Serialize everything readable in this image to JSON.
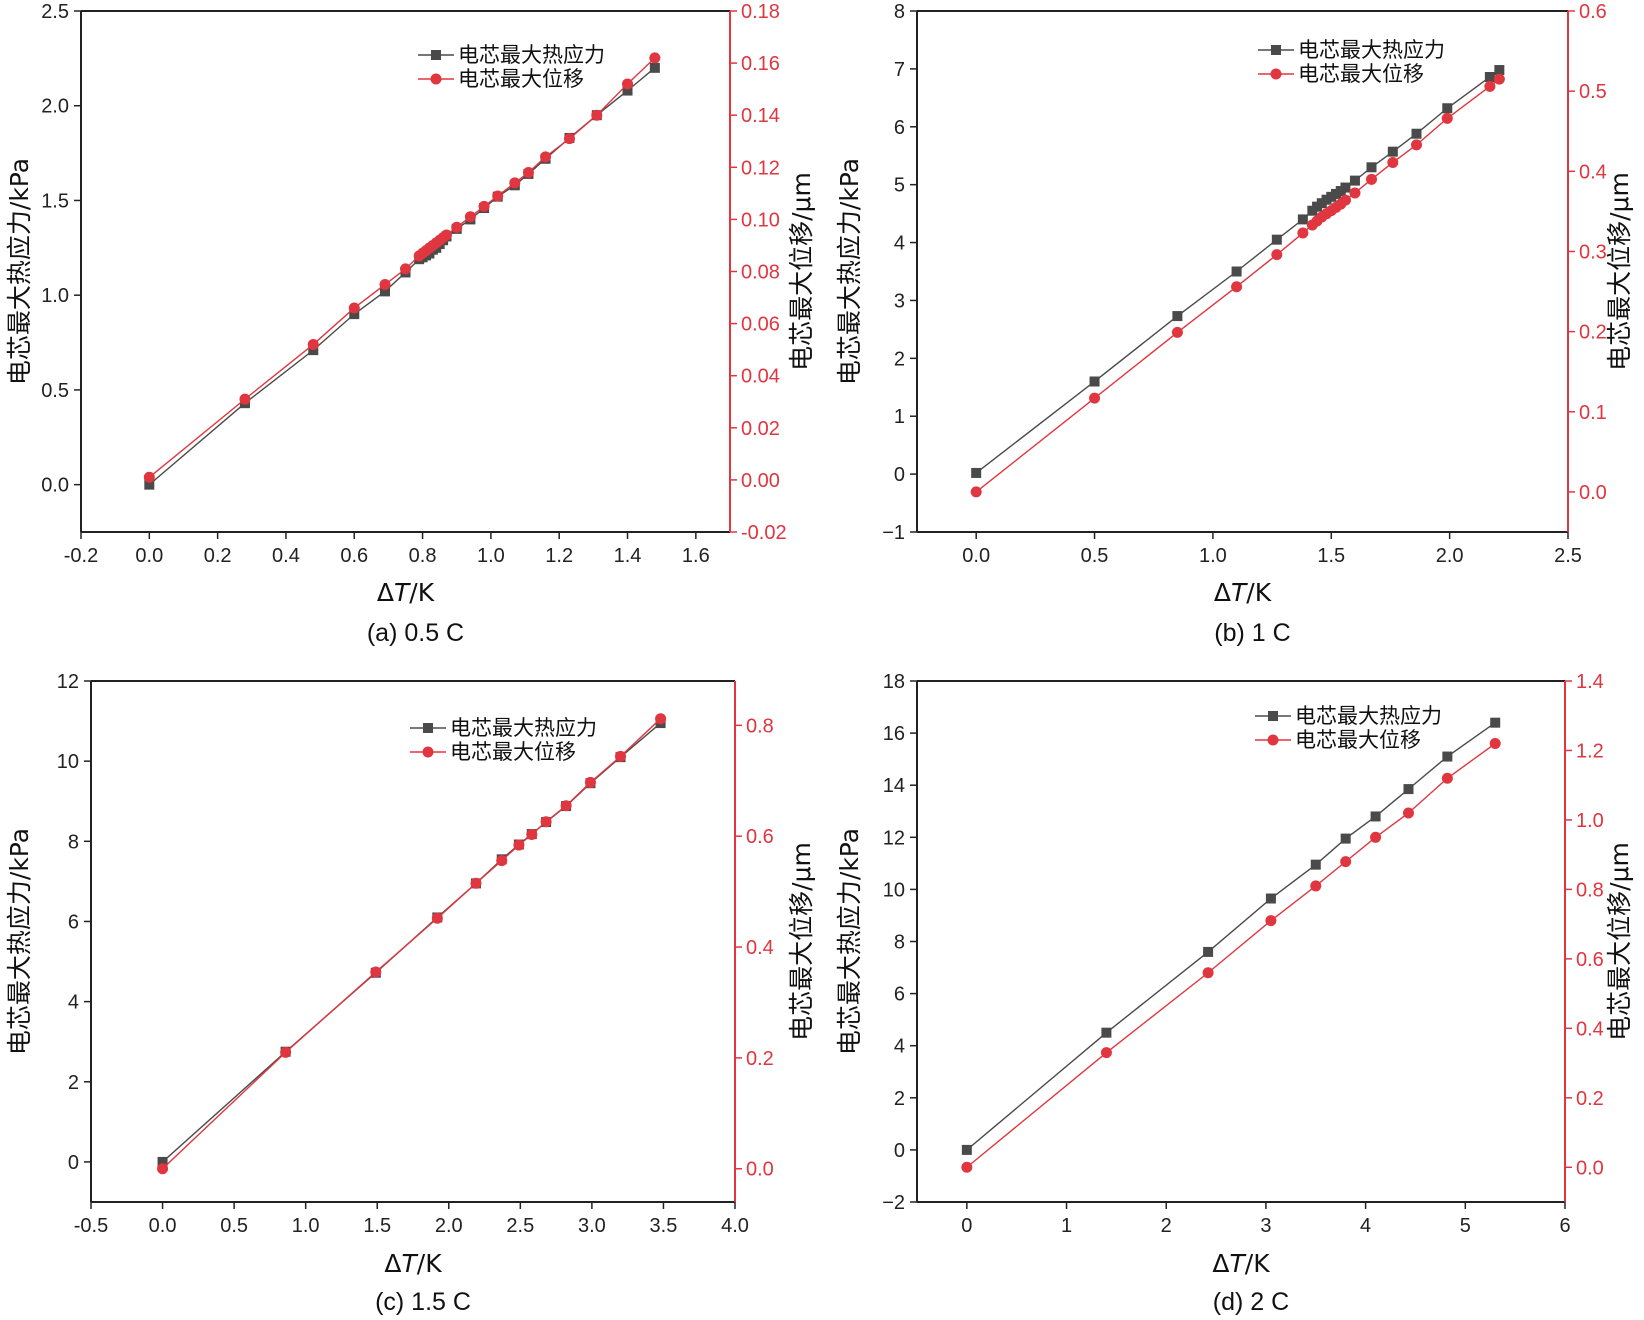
{
  "colors": {
    "stress": "#4a4a4a",
    "displacement": "#e0363f",
    "axis": "#222222"
  },
  "chart_data": [
    {
      "type": "line",
      "caption": "(a) 0.5 C",
      "xlabel_prefix": "Δ",
      "xlabel_var": "T",
      "xlabel_unit": "/K",
      "ylabel": "电芯最大热应力/kPa",
      "y2label": "电芯最大位移/μm",
      "xlim": [
        -0.2,
        1.7
      ],
      "ylim": [
        -0.25,
        2.5
      ],
      "y2lim": [
        -0.02,
        0.18
      ],
      "xticks": [
        "-0.2",
        "0.0",
        "0.2",
        "0.4",
        "0.6",
        "0.8",
        "1.0",
        "1.2",
        "1.4",
        "1.6"
      ],
      "yticks": [
        "0.0",
        "0.5",
        "1.0",
        "1.5",
        "2.0",
        "2.5"
      ],
      "y2ticks": [
        "-0.02",
        "0.00",
        "0.02",
        "0.04",
        "0.06",
        "0.08",
        "0.10",
        "0.12",
        "0.14",
        "0.16",
        "0.18"
      ],
      "legend": [
        "电芯最大热应力",
        "电芯最大位移"
      ],
      "series": [
        {
          "name": "电芯最大热应力",
          "axis": "left",
          "marker": "square",
          "x": [
            0.0,
            0.28,
            0.48,
            0.6,
            0.69,
            0.75,
            0.79,
            0.8,
            0.81,
            0.82,
            0.83,
            0.84,
            0.85,
            0.86,
            0.87,
            0.9,
            0.94,
            0.98,
            1.02,
            1.07,
            1.11,
            1.16,
            1.23,
            1.31,
            1.4,
            1.48
          ],
          "y": [
            0.0,
            0.43,
            0.71,
            0.9,
            1.02,
            1.12,
            1.19,
            1.2,
            1.21,
            1.22,
            1.24,
            1.25,
            1.27,
            1.29,
            1.31,
            1.35,
            1.4,
            1.46,
            1.52,
            1.58,
            1.64,
            1.72,
            1.83,
            1.95,
            2.08,
            2.2
          ]
        },
        {
          "name": "电芯最大位移",
          "axis": "right",
          "marker": "circle",
          "x": [
            0.0,
            0.28,
            0.48,
            0.6,
            0.69,
            0.75,
            0.79,
            0.8,
            0.81,
            0.82,
            0.83,
            0.84,
            0.85,
            0.86,
            0.87,
            0.9,
            0.94,
            0.98,
            1.02,
            1.07,
            1.11,
            1.16,
            1.23,
            1.31,
            1.4,
            1.48
          ],
          "y": [
            0.001,
            0.031,
            0.052,
            0.066,
            0.075,
            0.081,
            0.086,
            0.087,
            0.088,
            0.089,
            0.09,
            0.091,
            0.092,
            0.093,
            0.094,
            0.097,
            0.101,
            0.105,
            0.109,
            0.114,
            0.118,
            0.124,
            0.131,
            0.14,
            0.152,
            0.162
          ]
        }
      ]
    },
    {
      "type": "line",
      "caption": "(b) 1 C",
      "xlabel_prefix": "Δ",
      "xlabel_var": "T",
      "xlabel_unit": "/K",
      "ylabel": "电芯最大热应力/kPa",
      "y2label": "电芯最大位移/μm",
      "xlim": [
        -0.25,
        2.5
      ],
      "ylim": [
        -1,
        8
      ],
      "y2lim": [
        -0.05,
        0.6
      ],
      "xticks": [
        "0.0",
        "0.5",
        "1.0",
        "1.5",
        "2.0",
        "2.5"
      ],
      "yticks": [
        "−1",
        "0",
        "1",
        "2",
        "3",
        "4",
        "5",
        "6",
        "7",
        "8"
      ],
      "y2ticks": [
        "0.0",
        "0.1",
        "0.2",
        "0.3",
        "0.4",
        "0.5",
        "0.6"
      ],
      "legend": [
        "电芯最大热应力",
        "电芯最大位移"
      ],
      "series": [
        {
          "name": "电芯最大热应力",
          "axis": "left",
          "marker": "square",
          "x": [
            0.0,
            0.5,
            0.85,
            1.1,
            1.27,
            1.38,
            1.42,
            1.44,
            1.46,
            1.48,
            1.5,
            1.52,
            1.54,
            1.56,
            1.6,
            1.67,
            1.76,
            1.86,
            1.99,
            2.17,
            2.21
          ],
          "y": [
            0.02,
            1.6,
            2.73,
            3.5,
            4.05,
            4.4,
            4.55,
            4.62,
            4.68,
            4.74,
            4.79,
            4.84,
            4.89,
            4.95,
            5.07,
            5.3,
            5.57,
            5.88,
            6.32,
            6.86,
            6.98
          ]
        },
        {
          "name": "电芯最大位移",
          "axis": "right",
          "marker": "circle",
          "x": [
            0.0,
            0.5,
            0.85,
            1.1,
            1.27,
            1.38,
            1.42,
            1.44,
            1.46,
            1.48,
            1.5,
            1.52,
            1.54,
            1.56,
            1.6,
            1.67,
            1.76,
            1.86,
            1.99,
            2.17,
            2.21
          ],
          "y": [
            0.0,
            0.117,
            0.199,
            0.256,
            0.296,
            0.323,
            0.333,
            0.338,
            0.343,
            0.347,
            0.351,
            0.355,
            0.359,
            0.364,
            0.373,
            0.39,
            0.411,
            0.433,
            0.466,
            0.506,
            0.515
          ]
        }
      ]
    },
    {
      "type": "line",
      "caption": "(c) 1.5 C",
      "xlabel_prefix": "Δ",
      "xlabel_var": "T",
      "xlabel_unit": "/K",
      "ylabel": "电芯最大热应力/kPa",
      "y2label": "电芯最大位移/μm",
      "xlim": [
        -0.5,
        4.0
      ],
      "ylim": [
        -1,
        12
      ],
      "y2lim": [
        -0.06,
        0.88
      ],
      "xticks": [
        "-0.5",
        "0.0",
        "0.5",
        "1.0",
        "1.5",
        "2.0",
        "2.5",
        "3.0",
        "3.5",
        "4.0"
      ],
      "yticks": [
        "0",
        "2",
        "4",
        "6",
        "8",
        "10",
        "12"
      ],
      "y2ticks": [
        "0.0",
        "0.2",
        "0.4",
        "0.6",
        "0.8"
      ],
      "legend": [
        "电芯最大热应力",
        "电芯最大位移"
      ],
      "series": [
        {
          "name": "电芯最大热应力",
          "axis": "left",
          "marker": "square",
          "x": [
            0.0,
            0.86,
            1.49,
            1.92,
            2.19,
            2.37,
            2.49,
            2.58,
            2.68,
            2.82,
            2.99,
            3.2,
            3.48
          ],
          "y": [
            0.0,
            2.75,
            4.72,
            6.1,
            6.95,
            7.55,
            7.92,
            8.18,
            8.48,
            8.88,
            9.45,
            10.1,
            10.95
          ]
        },
        {
          "name": "电芯最大位移",
          "axis": "right",
          "marker": "circle",
          "x": [
            0.0,
            0.86,
            1.49,
            1.92,
            2.19,
            2.37,
            2.49,
            2.58,
            2.68,
            2.82,
            2.99,
            3.2,
            3.48
          ],
          "y": [
            0.0,
            0.21,
            0.355,
            0.452,
            0.515,
            0.556,
            0.584,
            0.603,
            0.626,
            0.655,
            0.697,
            0.744,
            0.812
          ]
        }
      ]
    },
    {
      "type": "line",
      "caption": "(d) 2 C",
      "xlabel_prefix": "Δ",
      "xlabel_var": "T",
      "xlabel_unit": "/K",
      "ylabel": "电芯最大热应力/kPa",
      "y2label": "电芯最大位移/μm",
      "xlim": [
        -0.5,
        6
      ],
      "ylim": [
        -2,
        18
      ],
      "y2lim": [
        -0.1,
        1.4
      ],
      "xticks": [
        "0",
        "1",
        "2",
        "3",
        "4",
        "5",
        "6"
      ],
      "yticks": [
        "−2",
        "0",
        "2",
        "4",
        "6",
        "8",
        "10",
        "12",
        "14",
        "16",
        "18"
      ],
      "y2ticks": [
        "0.0",
        "0.2",
        "0.4",
        "0.6",
        "0.8",
        "1.0",
        "1.2",
        "1.4"
      ],
      "legend": [
        "电芯最大热应力",
        "电芯最大位移"
      ],
      "series": [
        {
          "name": "电芯最大热应力",
          "axis": "left",
          "marker": "square",
          "x": [
            0.0,
            1.4,
            2.42,
            3.05,
            3.5,
            3.8,
            4.1,
            4.43,
            4.82,
            5.3
          ],
          "y": [
            0.0,
            4.5,
            7.6,
            9.65,
            10.95,
            11.95,
            12.8,
            13.85,
            15.1,
            16.4
          ]
        },
        {
          "name": "电芯最大位移",
          "axis": "right",
          "marker": "circle",
          "x": [
            0.0,
            1.4,
            2.42,
            3.05,
            3.5,
            3.8,
            4.1,
            4.43,
            4.82,
            5.3
          ],
          "y": [
            0.0,
            0.33,
            0.56,
            0.71,
            0.81,
            0.88,
            0.95,
            1.02,
            1.12,
            1.22
          ]
        }
      ]
    }
  ]
}
